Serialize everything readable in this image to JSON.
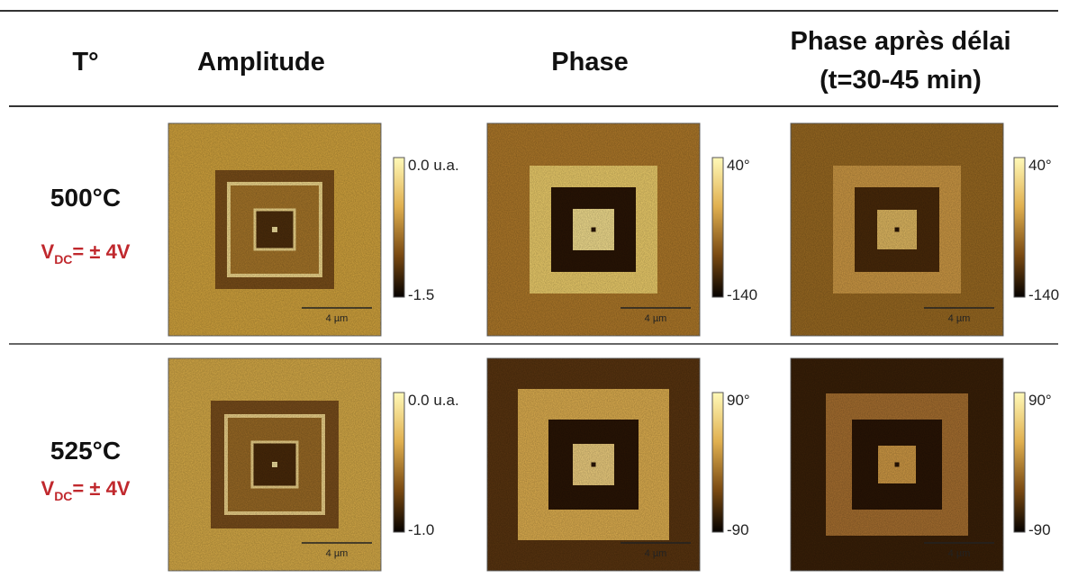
{
  "header": {
    "col0": "T°",
    "col1": "Amplitude",
    "col2": "Phase",
    "col3_line1": "Phase après délai",
    "col3_line2": "(t=30-45 min)"
  },
  "rows": [
    {
      "temperature": "500°C",
      "voltage": {
        "prefix": "V",
        "subscript": "DC",
        "suffix": "= ± 4V"
      },
      "images": [
        {
          "scale_max": "0.0 u.a.",
          "scale_min": "-1.5",
          "scale_bar": "4 µm"
        },
        {
          "scale_max": "40°",
          "scale_min": "-140",
          "scale_bar": "4 µm"
        },
        {
          "scale_max": "40°",
          "scale_min": "-140",
          "scale_bar": "4 µm"
        }
      ]
    },
    {
      "temperature": "525°C",
      "voltage": {
        "prefix": "V",
        "subscript": "DC",
        "suffix": "= ± 4V"
      },
      "images": [
        {
          "scale_max": "0.0 u.a.",
          "scale_min": "-1.0",
          "scale_bar": "4 µm"
        },
        {
          "scale_max": "90°",
          "scale_min": "-90",
          "scale_bar": "4 µm"
        },
        {
          "scale_max": "90°",
          "scale_min": "-90",
          "scale_bar": "4 µm"
        }
      ]
    }
  ]
}
